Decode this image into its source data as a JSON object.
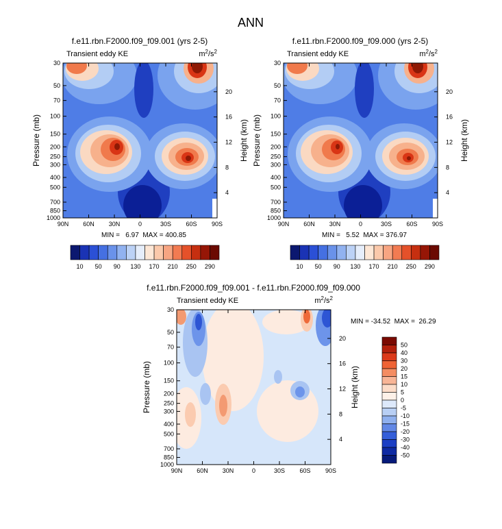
{
  "page_title": "ANN",
  "chart_data": [
    {
      "type": "heatmap",
      "id": "run-a",
      "title": "f.e11.rbn.F2000.f09_f09.001 (yrs 2-5)",
      "left_label": "Transient eddy KE",
      "units_base": "m",
      "units_sup1": "2",
      "units_mid": "/s",
      "units_sup2": "2",
      "xlabel": "",
      "ylabel": "Pressure (mb)",
      "ylabel_right": "Height (km)",
      "x_ticks": [
        "90N",
        "60N",
        "30N",
        "0",
        "30S",
        "60S",
        "90S"
      ],
      "y_ticks": [
        "30",
        "50",
        "70",
        "100",
        "150",
        "200",
        "250",
        "300",
        "400",
        "500",
        "700",
        "850",
        "1000"
      ],
      "height_ticks": [
        "20",
        "16",
        "12",
        "8",
        "4"
      ],
      "stats": "MIN =   6.97  MAX = 400.85",
      "min": 6.97,
      "max": 400.85,
      "colorbar_labels": [
        "10",
        "50",
        "90",
        "130",
        "170",
        "210",
        "250",
        "290"
      ],
      "levels": [
        10,
        30,
        50,
        70,
        90,
        110,
        130,
        150,
        170,
        190,
        210,
        230,
        250,
        270,
        290
      ]
    },
    {
      "type": "heatmap",
      "id": "run-b",
      "title": "f.e11.rbn.F2000.f09_f09.000 (yrs 2-5)",
      "left_label": "Transient eddy KE",
      "units_base": "m",
      "units_sup1": "2",
      "units_mid": "/s",
      "units_sup2": "2",
      "xlabel": "",
      "ylabel": "Pressure (mb)",
      "ylabel_right": "Height (km)",
      "x_ticks": [
        "90N",
        "60N",
        "30N",
        "0",
        "30S",
        "60S",
        "90S"
      ],
      "y_ticks": [
        "30",
        "50",
        "70",
        "100",
        "150",
        "200",
        "250",
        "300",
        "400",
        "500",
        "700",
        "850",
        "1000"
      ],
      "height_ticks": [
        "20",
        "16",
        "12",
        "8",
        "4"
      ],
      "stats": "MIN =   5.52  MAX = 376.97",
      "min": 5.52,
      "max": 376.97,
      "colorbar_labels": [
        "10",
        "50",
        "90",
        "130",
        "170",
        "210",
        "250",
        "290"
      ],
      "levels": [
        10,
        30,
        50,
        70,
        90,
        110,
        130,
        150,
        170,
        190,
        210,
        230,
        250,
        270,
        290
      ]
    },
    {
      "type": "heatmap",
      "id": "difference",
      "title": "f.e11.rbn.F2000.f09_f09.001 - f.e11.rbn.F2000.f09_f09.000",
      "left_label": "Transient eddy KE",
      "units_base": "m",
      "units_sup1": "2",
      "units_mid": "/s",
      "units_sup2": "2",
      "xlabel": "",
      "ylabel": "Pressure (mb)",
      "ylabel_right": "Height (km)",
      "x_ticks": [
        "90N",
        "60N",
        "30N",
        "0",
        "30S",
        "60S",
        "90S"
      ],
      "y_ticks": [
        "30",
        "50",
        "70",
        "100",
        "150",
        "200",
        "250",
        "300",
        "400",
        "500",
        "700",
        "850",
        "1000"
      ],
      "height_ticks": [
        "20",
        "16",
        "12",
        "8",
        "4"
      ],
      "stats": "MIN = -34.52  MAX =  26.29",
      "min": -34.52,
      "max": 26.29,
      "colorbar_labels": [
        "50",
        "40",
        "30",
        "20",
        "15",
        "10",
        "5",
        "0",
        "-5",
        "-10",
        "-15",
        "-20",
        "-30",
        "-40",
        "-50"
      ],
      "levels": [
        -50,
        -40,
        -30,
        -20,
        -15,
        -10,
        -5,
        0,
        5,
        10,
        15,
        20,
        30,
        40,
        50
      ]
    }
  ]
}
